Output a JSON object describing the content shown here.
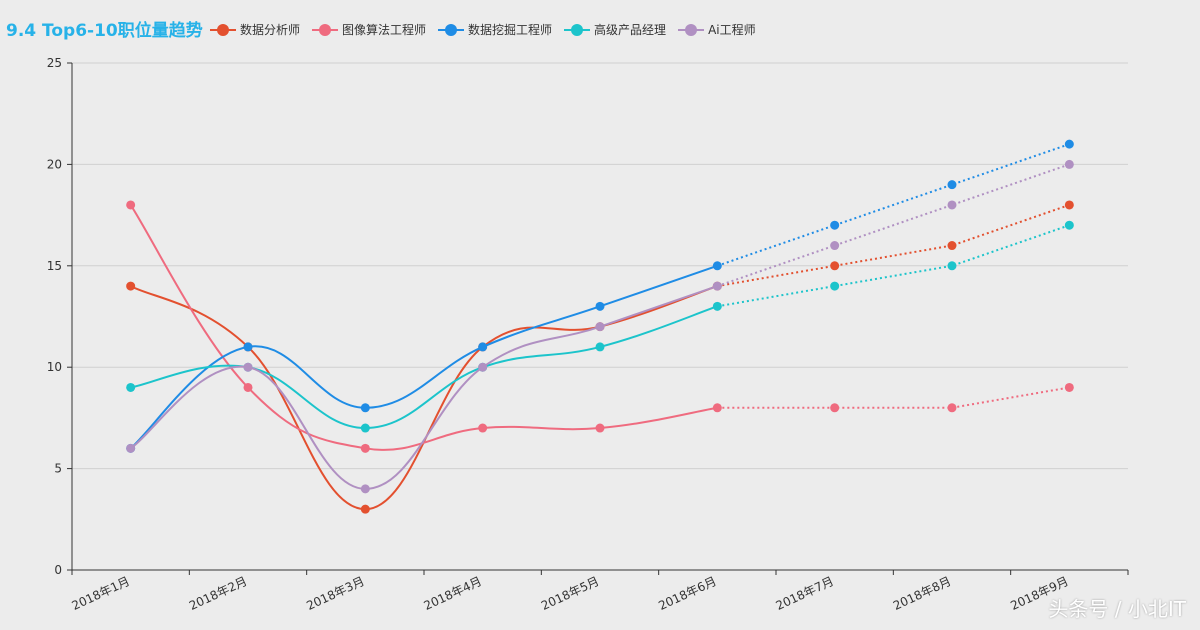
{
  "colors": {
    "background": "#ececec",
    "title": "#27b2e8",
    "axis": "#333333",
    "grid": "#d0d0d0"
  },
  "chart_data": {
    "type": "line",
    "title": "9.4 Top6-10职位量趋势",
    "xlabel": "",
    "ylabel": "",
    "ylim": [
      0,
      25
    ],
    "yticks": [
      0,
      5,
      10,
      15,
      20,
      25
    ],
    "grid": true,
    "legend_position": "top",
    "categories": [
      "2018年1月",
      "2018年2月",
      "2018年3月",
      "2018年4月",
      "2018年5月",
      "2018年6月",
      "2018年7月",
      "2018年8月",
      "2018年9月"
    ],
    "actual_through_index": 5,
    "series": [
      {
        "name": "数据分析师",
        "color": "#e3502f",
        "values": [
          14,
          11,
          3,
          11,
          12,
          14,
          15,
          16,
          18
        ]
      },
      {
        "name": "图像算法工程师",
        "color": "#ef6b7f",
        "values": [
          18,
          9,
          6,
          7,
          7,
          8,
          8,
          8,
          9
        ]
      },
      {
        "name": "数据挖掘工程师",
        "color": "#1f8ce5",
        "values": [
          6,
          11,
          8,
          11,
          13,
          15,
          17,
          19,
          21
        ]
      },
      {
        "name": "高级产品经理",
        "color": "#1cc4cb",
        "values": [
          9,
          10,
          7,
          10,
          11,
          13,
          14,
          15,
          17
        ]
      },
      {
        "name": "Ai工程师",
        "color": "#b090c2",
        "values": [
          6,
          10,
          4,
          10,
          12,
          14,
          16,
          18,
          20
        ]
      }
    ]
  },
  "watermark": "头条号 / 小北IT"
}
